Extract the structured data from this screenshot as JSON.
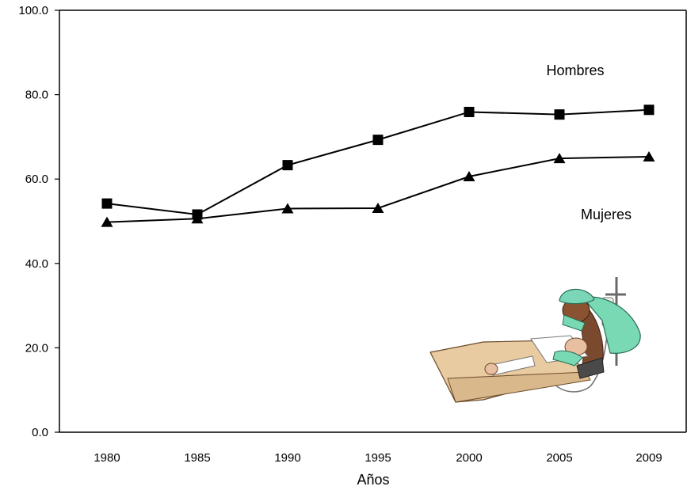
{
  "chart_data": {
    "type": "line",
    "xlabel": "Años",
    "ylabel": "",
    "categories": [
      "1980",
      "1985",
      "1990",
      "1995",
      "2000",
      "2005",
      "2009"
    ],
    "ylim": [
      0,
      100
    ],
    "yticks": [
      "0.0",
      "20.0",
      "40.0",
      "60.0",
      "80.0",
      "100.0"
    ],
    "grid": false,
    "series": [
      {
        "name": "Hombres",
        "marker": "square",
        "values": [
          54.2,
          51.6,
          63.3,
          69.3,
          75.9,
          75.3,
          76.4
        ]
      },
      {
        "name": "Mujeres",
        "marker": "triangle",
        "values": [
          49.8,
          50.6,
          53.0,
          53.1,
          60.6,
          64.9,
          65.3
        ]
      }
    ]
  },
  "illustration": {
    "icon": "hospital-patient-illustration"
  },
  "colors": {
    "line": "#000000",
    "marker": "#000000"
  }
}
